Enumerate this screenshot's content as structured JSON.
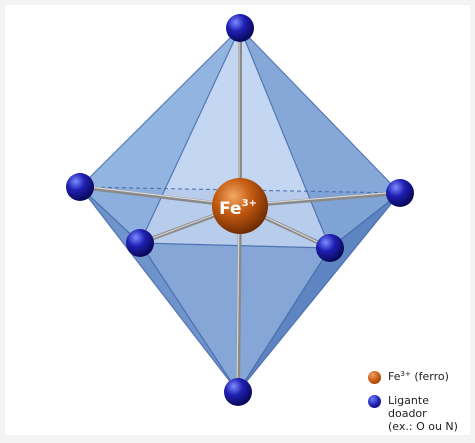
{
  "center": {
    "element": "Fe",
    "charge": "3+"
  },
  "legend": {
    "iron": {
      "element": "Fe",
      "charge": "3+",
      "text": " (ferro)"
    },
    "ligand": {
      "line1": "Ligante doador",
      "line2": "(ex.: O ou N)"
    }
  },
  "colors": {
    "iron": "#c0560e",
    "ligand": "#1c1ea8",
    "octahedron": "#7fa6dc",
    "bond": "#8a8a8a"
  }
}
